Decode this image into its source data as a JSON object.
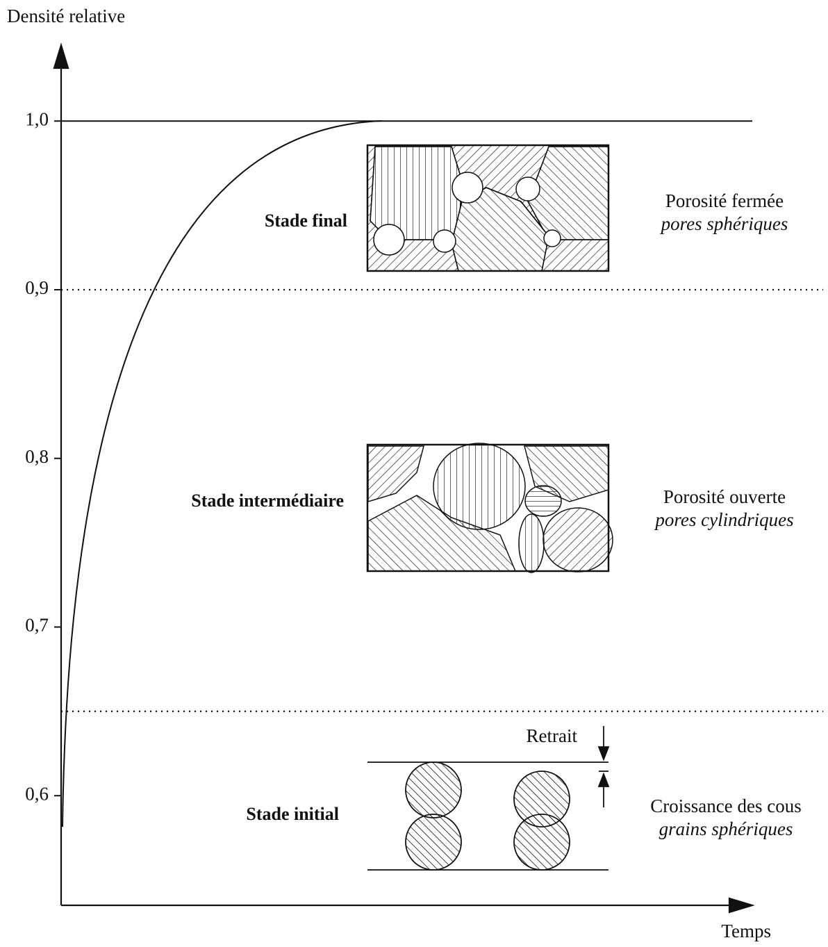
{
  "chart_data": {
    "type": "line",
    "ylabel": "Densité relative",
    "xlabel": "Temps",
    "ylim": [
      0.535,
      1.045
    ],
    "yticks": [
      {
        "value": 0.6,
        "label": "0,6"
      },
      {
        "value": 0.7,
        "label": "0,7"
      },
      {
        "value": 0.8,
        "label": "0,8"
      },
      {
        "value": 0.9,
        "label": "0,9"
      },
      {
        "value": 1.0,
        "label": "1,0"
      }
    ],
    "reference_lines": [
      {
        "value": 1.0,
        "style": "solid"
      },
      {
        "value": 0.9,
        "style": "dotted"
      },
      {
        "value": 0.65,
        "style": "dotted"
      }
    ],
    "stages": [
      {
        "name": "Stade final",
        "title": "Porosité fermée",
        "subtitle": "pores sphériques"
      },
      {
        "name": "Stade intermédiaire",
        "title": "Porosité ouverte",
        "subtitle": "pores cylindriques"
      },
      {
        "name": "Stade initial",
        "title": "Croissance des cous",
        "subtitle": "grains sphériques"
      }
    ],
    "annotation": "Retrait"
  }
}
